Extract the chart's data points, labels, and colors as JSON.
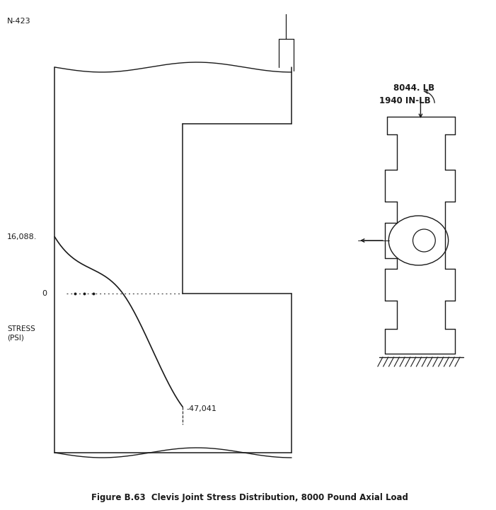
{
  "title": "N-423",
  "caption": "Figure B.63  Clevis Joint Stress Distribution, 8000 Pound Axial Load",
  "label_16088": "16,088.",
  "label_0": "0",
  "label_47041": "-47,041",
  "stress_label_line1": "STRESS",
  "stress_label_line2": "(PSI)",
  "load_label1": "8044. LB",
  "load_label2": "1940 IN-LB",
  "bg_color": "#ffffff",
  "line_color": "#1a1a1a",
  "font_size_caption": 8.5,
  "font_size_labels": 8,
  "font_size_title": 8
}
